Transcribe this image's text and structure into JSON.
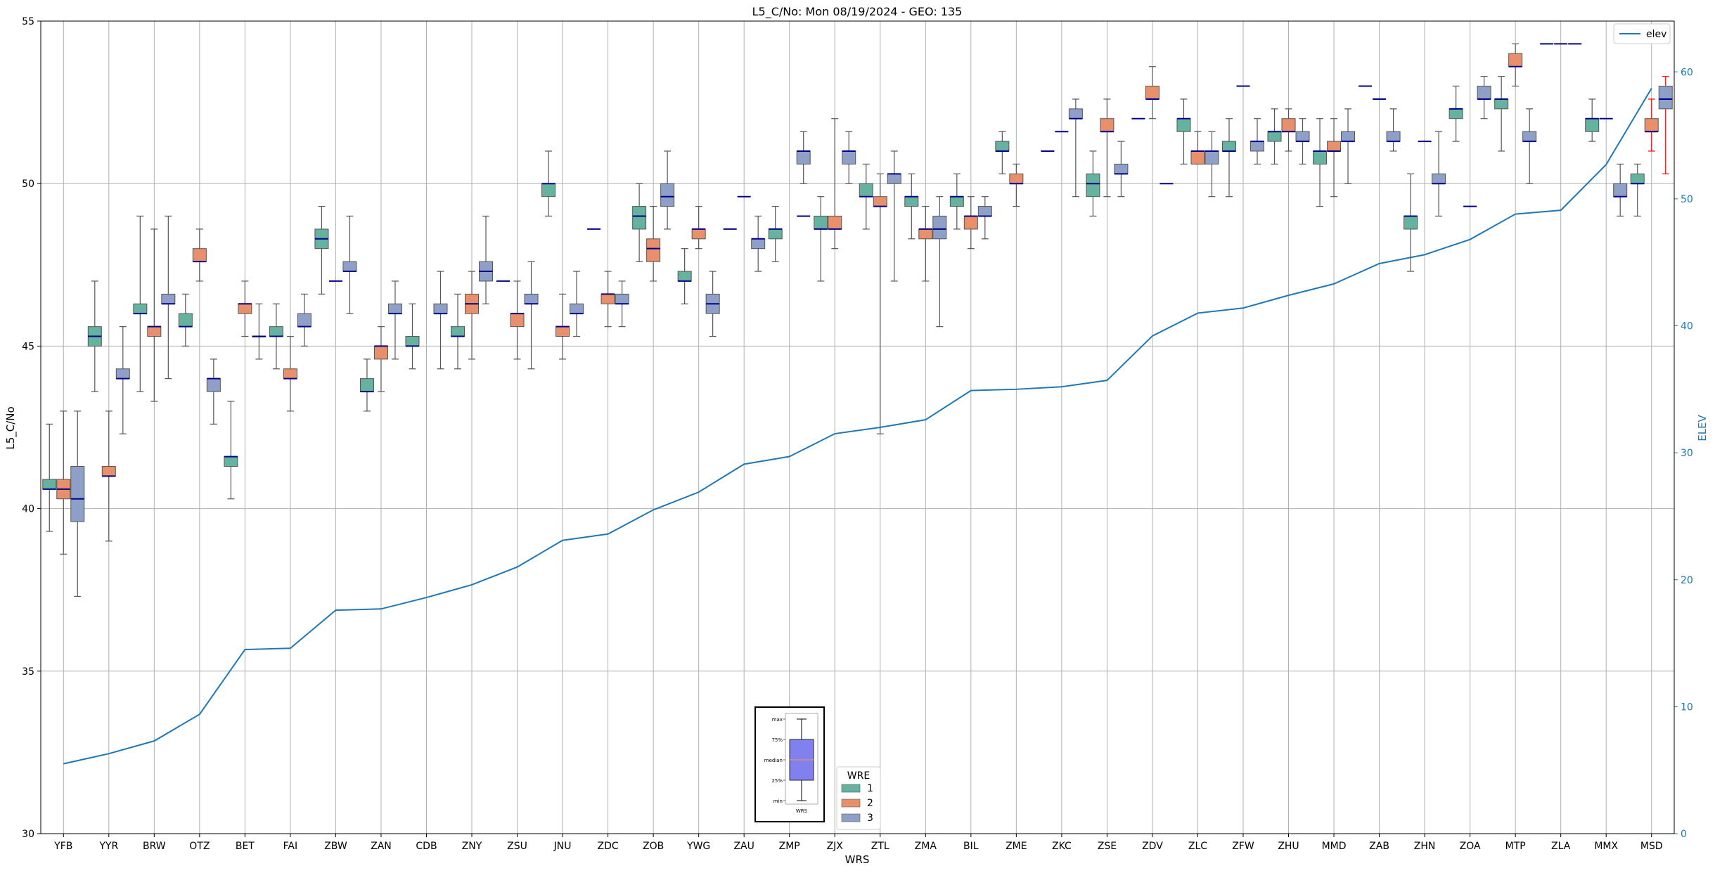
{
  "chart_data": {
    "type": "box",
    "title": "L5_C/No: Mon 08/19/2024 - GEO: 135",
    "xlabel": "WRS",
    "ylabel": "L5_C/No",
    "ylabel_right": "ELEV",
    "ylim": [
      30,
      55
    ],
    "ylim_right": [
      0,
      64
    ],
    "yticks": [
      30,
      35,
      40,
      45,
      50,
      55
    ],
    "yticks_right": [
      0,
      10,
      20,
      30,
      40,
      50,
      60
    ],
    "grid": true,
    "categories": [
      "YFB",
      "YYR",
      "BRW",
      "OTZ",
      "BET",
      "FAI",
      "ZBW",
      "ZAN",
      "CDB",
      "ZNY",
      "ZSU",
      "JNU",
      "ZDC",
      "ZOB",
      "YWG",
      "ZAU",
      "ZMP",
      "ZJX",
      "ZTL",
      "ZMA",
      "BIL",
      "ZME",
      "ZKC",
      "ZSE",
      "ZDV",
      "ZLC",
      "ZFW",
      "ZHU",
      "MMD",
      "ZAB",
      "ZHN",
      "ZOA",
      "MTP",
      "ZLA",
      "MMX",
      "MSD"
    ],
    "legend_elev": {
      "label": "elev",
      "placement": "upper right"
    },
    "legend_wre": {
      "title": "WRE",
      "entries": [
        "1",
        "2",
        "3"
      ],
      "placement": "lower center"
    },
    "colors": {
      "wre1": "#66b2a0",
      "wre2": "#e8906c",
      "wre3": "#8fa0c8",
      "elev_line": "#1f77b4",
      "median": "#00008b",
      "whisker": "#555555",
      "red_whisker": "#ff0000"
    },
    "inset": {
      "labels": [
        "max",
        "75%",
        "median",
        "25%",
        "min"
      ],
      "xlabel": "WRS"
    },
    "elev": [
      5.5,
      6.3,
      7.3,
      9.4,
      14.5,
      14.6,
      17.6,
      17.7,
      18.6,
      19.6,
      21.0,
      23.1,
      23.6,
      25.5,
      26.9,
      29.1,
      29.7,
      31.5,
      32.0,
      32.6,
      34.9,
      35.0,
      35.2,
      35.7,
      39.2,
      41.0,
      41.4,
      42.4,
      43.3,
      44.9,
      45.6,
      46.8,
      48.8,
      49.1,
      52.7,
      58.7
    ],
    "series": [
      {
        "name": "1",
        "boxes": [
          {
            "cat": "YFB",
            "min": 39.3,
            "q1": 40.6,
            "median": 40.6,
            "q3": 40.9,
            "max": 42.6
          },
          {
            "cat": "YYR",
            "min": 43.6,
            "q1": 45.0,
            "median": 45.3,
            "q3": 45.6,
            "max": 47.0
          },
          {
            "cat": "BRW",
            "min": 43.6,
            "q1": 46.0,
            "median": 46.0,
            "q3": 46.3,
            "max": 49.0
          },
          {
            "cat": "OTZ",
            "min": 45.0,
            "q1": 45.6,
            "median": 45.6,
            "q3": 46.0,
            "max": 46.6
          },
          {
            "cat": "BET",
            "min": 40.3,
            "q1": 41.3,
            "median": 41.6,
            "q3": 41.6,
            "max": 43.3
          },
          {
            "cat": "FAI",
            "min": 44.3,
            "q1": 45.3,
            "median": 45.3,
            "q3": 45.6,
            "max": 46.3
          },
          {
            "cat": "ZBW",
            "min": 46.6,
            "q1": 48.0,
            "median": 48.3,
            "q3": 48.6,
            "max": 49.3
          },
          {
            "cat": "ZAN",
            "min": 43.0,
            "q1": 43.6,
            "median": 43.6,
            "q3": 44.0,
            "max": 44.6
          },
          {
            "cat": "CDB",
            "min": 44.3,
            "q1": 45.0,
            "median": 45.0,
            "q3": 45.3,
            "max": 46.3
          },
          {
            "cat": "ZNY",
            "min": 44.3,
            "q1": 45.3,
            "median": 45.3,
            "q3": 45.6,
            "max": 46.6
          },
          {
            "cat": "JNU",
            "min": 49.0,
            "q1": 49.6,
            "median": 50.0,
            "q3": 50.0,
            "max": 51.0
          },
          {
            "cat": "ZOB",
            "min": 47.6,
            "q1": 48.6,
            "median": 49.0,
            "q3": 49.3,
            "max": 50.0
          },
          {
            "cat": "YWG",
            "min": 46.3,
            "q1": 47.0,
            "median": 47.0,
            "q3": 47.3,
            "max": 48.0
          },
          {
            "cat": "ZMP",
            "min": 47.6,
            "q1": 48.3,
            "median": 48.6,
            "q3": 48.6,
            "max": 49.3
          },
          {
            "cat": "ZJX",
            "min": 47.0,
            "q1": 48.6,
            "median": 48.6,
            "q3": 49.0,
            "max": 49.6
          },
          {
            "cat": "ZTL",
            "min": 48.6,
            "q1": 49.6,
            "median": 49.6,
            "q3": 50.0,
            "max": 50.6
          },
          {
            "cat": "ZMA",
            "min": 48.3,
            "q1": 49.3,
            "median": 49.6,
            "q3": 49.6,
            "max": 50.3
          },
          {
            "cat": "BIL",
            "min": 48.6,
            "q1": 49.3,
            "median": 49.6,
            "q3": 49.6,
            "max": 50.3
          },
          {
            "cat": "ZME",
            "min": 50.3,
            "q1": 51.0,
            "median": 51.0,
            "q3": 51.3,
            "max": 51.6
          },
          {
            "cat": "ZSE",
            "min": 49.0,
            "q1": 49.6,
            "median": 50.0,
            "q3": 50.3,
            "max": 51.0
          },
          {
            "cat": "ZLC",
            "min": 50.6,
            "q1": 51.6,
            "median": 52.0,
            "q3": 52.0,
            "max": 52.6
          },
          {
            "cat": "ZFW",
            "min": 49.6,
            "q1": 51.0,
            "median": 51.0,
            "q3": 51.3,
            "max": 52.0
          },
          {
            "cat": "ZHU",
            "min": 50.6,
            "q1": 51.3,
            "median": 51.6,
            "q3": 51.6,
            "max": 52.3
          },
          {
            "cat": "MMD",
            "min": 49.3,
            "q1": 50.6,
            "median": 51.0,
            "q3": 51.0,
            "max": 52.0
          },
          {
            "cat": "ZHN",
            "min": 47.3,
            "q1": 48.6,
            "median": 49.0,
            "q3": 49.0,
            "max": 50.3
          },
          {
            "cat": "ZOA",
            "min": 51.3,
            "q1": 52.0,
            "median": 52.3,
            "q3": 52.3,
            "max": 53.0
          },
          {
            "cat": "MTP",
            "min": 51.0,
            "q1": 52.3,
            "median": 52.6,
            "q3": 52.6,
            "max": 53.3
          },
          {
            "cat": "MMX",
            "min": 51.3,
            "q1": 51.6,
            "median": 52.0,
            "q3": 52.0,
            "max": 52.6
          },
          {
            "cat": "MSD",
            "min": 49.0,
            "q1": 50.0,
            "median": 50.0,
            "q3": 50.3,
            "max": 50.6
          }
        ]
      },
      {
        "name": "2",
        "boxes": [
          {
            "cat": "YFB",
            "min": 38.6,
            "q1": 40.3,
            "median": 40.6,
            "q3": 40.9,
            "max": 43.0
          },
          {
            "cat": "YYR",
            "min": 39.0,
            "q1": 41.0,
            "median": 41.0,
            "q3": 41.3,
            "max": 43.0
          },
          {
            "cat": "BRW",
            "min": 43.3,
            "q1": 45.3,
            "median": 45.6,
            "q3": 45.6,
            "max": 48.6
          },
          {
            "cat": "OTZ",
            "min": 47.0,
            "q1": 47.6,
            "median": 47.6,
            "q3": 48.0,
            "max": 48.6
          },
          {
            "cat": "BET",
            "min": 45.3,
            "q1": 46.0,
            "median": 46.3,
            "q3": 46.3,
            "max": 47.0
          },
          {
            "cat": "FAI",
            "min": 43.0,
            "q1": 44.0,
            "median": 44.0,
            "q3": 44.3,
            "max": 45.3
          },
          {
            "cat": "ZAN",
            "min": 43.6,
            "q1": 44.6,
            "median": 45.0,
            "q3": 45.0,
            "max": 45.6
          },
          {
            "cat": "ZNY",
            "min": 44.6,
            "q1": 46.0,
            "median": 46.3,
            "q3": 46.6,
            "max": 47.3
          },
          {
            "cat": "ZSU",
            "min": 44.6,
            "q1": 45.6,
            "median": 46.0,
            "q3": 46.0,
            "max": 47.0
          },
          {
            "cat": "JNU",
            "min": 44.6,
            "q1": 45.3,
            "median": 45.6,
            "q3": 45.6,
            "max": 46.6
          },
          {
            "cat": "ZDC",
            "min": 45.6,
            "q1": 46.3,
            "median": 46.6,
            "q3": 46.6,
            "max": 47.3
          },
          {
            "cat": "ZOB",
            "min": 47.0,
            "q1": 47.6,
            "median": 48.0,
            "q3": 48.3,
            "max": 49.3
          },
          {
            "cat": "YWG",
            "min": 48.0,
            "q1": 48.3,
            "median": 48.6,
            "q3": 48.6,
            "max": 49.3
          },
          {
            "cat": "ZJX",
            "min": 48.0,
            "q1": 48.6,
            "median": 48.6,
            "q3": 49.0,
            "max": 52.0
          },
          {
            "cat": "ZTL",
            "min": 42.3,
            "q1": 49.3,
            "median": 49.3,
            "q3": 49.6,
            "max": 50.3
          },
          {
            "cat": "ZMA",
            "min": 47.0,
            "q1": 48.3,
            "median": 48.6,
            "q3": 48.6,
            "max": 49.3
          },
          {
            "cat": "BIL",
            "min": 48.0,
            "q1": 48.6,
            "median": 49.0,
            "q3": 49.0,
            "max": 49.6
          },
          {
            "cat": "ZME",
            "min": 49.3,
            "q1": 50.0,
            "median": 50.0,
            "q3": 50.3,
            "max": 50.6
          },
          {
            "cat": "ZSE",
            "min": 49.6,
            "q1": 51.6,
            "median": 51.6,
            "q3": 52.0,
            "max": 52.6
          },
          {
            "cat": "ZDV",
            "min": 52.0,
            "q1": 52.6,
            "median": 52.6,
            "q3": 53.0,
            "max": 53.6
          },
          {
            "cat": "ZLC",
            "min": 50.6,
            "q1": 50.6,
            "median": 51.0,
            "q3": 51.0,
            "max": 51.6
          },
          {
            "cat": "ZHU",
            "min": 51.0,
            "q1": 51.6,
            "median": 51.6,
            "q3": 52.0,
            "max": 52.3
          },
          {
            "cat": "MMD",
            "min": 49.6,
            "q1": 51.0,
            "median": 51.0,
            "q3": 51.3,
            "max": 52.0
          },
          {
            "cat": "MTP",
            "min": 53.0,
            "q1": 53.6,
            "median": 53.6,
            "q3": 54.0,
            "max": 54.3
          },
          {
            "cat": "MSD",
            "min": 51.0,
            "q1": 51.6,
            "median": 51.6,
            "q3": 52.0,
            "max": 52.6,
            "whisker": "red"
          }
        ]
      },
      {
        "name": "3",
        "boxes": [
          {
            "cat": "YFB",
            "min": 37.3,
            "q1": 39.6,
            "median": 40.3,
            "q3": 41.3,
            "max": 43.0
          },
          {
            "cat": "YYR",
            "min": 42.3,
            "q1": 44.0,
            "median": 44.0,
            "q3": 44.3,
            "max": 45.6
          },
          {
            "cat": "BRW",
            "min": 44.0,
            "q1": 46.3,
            "median": 46.3,
            "q3": 46.6,
            "max": 49.0
          },
          {
            "cat": "OTZ",
            "min": 42.6,
            "q1": 43.6,
            "median": 44.0,
            "q3": 44.0,
            "max": 44.6
          },
          {
            "cat": "BET",
            "min": 44.6,
            "q1": 45.3,
            "median": 45.3,
            "q3": 45.3,
            "max": 46.3
          },
          {
            "cat": "FAI",
            "min": 45.0,
            "q1": 45.6,
            "median": 45.6,
            "q3": 46.0,
            "max": 46.6
          },
          {
            "cat": "ZBW",
            "min": 46.0,
            "q1": 47.3,
            "median": 47.3,
            "q3": 47.6,
            "max": 49.0
          },
          {
            "cat": "ZAN",
            "min": 44.6,
            "q1": 46.0,
            "median": 46.0,
            "q3": 46.3,
            "max": 47.0
          },
          {
            "cat": "CDB",
            "min": 44.3,
            "q1": 46.0,
            "median": 46.0,
            "q3": 46.3,
            "max": 47.3
          },
          {
            "cat": "ZNY",
            "min": 46.3,
            "q1": 47.0,
            "median": 47.3,
            "q3": 47.6,
            "max": 49.0
          },
          {
            "cat": "ZSU",
            "min": 44.3,
            "q1": 46.3,
            "median": 46.3,
            "q3": 46.6,
            "max": 47.6
          },
          {
            "cat": "JNU",
            "min": 45.3,
            "q1": 46.0,
            "median": 46.0,
            "q3": 46.3,
            "max": 47.3
          },
          {
            "cat": "ZDC",
            "min": 45.6,
            "q1": 46.3,
            "median": 46.3,
            "q3": 46.6,
            "max": 47.0
          },
          {
            "cat": "ZOB",
            "min": 48.6,
            "q1": 49.3,
            "median": 49.6,
            "q3": 50.0,
            "max": 51.0
          },
          {
            "cat": "YWG",
            "min": 45.3,
            "q1": 46.0,
            "median": 46.3,
            "q3": 46.6,
            "max": 47.3
          },
          {
            "cat": "ZAU",
            "min": 47.3,
            "q1": 48.0,
            "median": 48.3,
            "q3": 48.3,
            "max": 49.0
          },
          {
            "cat": "ZMP",
            "min": 50.0,
            "q1": 50.6,
            "median": 51.0,
            "q3": 51.0,
            "max": 51.6
          },
          {
            "cat": "ZJX",
            "min": 50.0,
            "q1": 50.6,
            "median": 51.0,
            "q3": 51.0,
            "max": 51.6
          },
          {
            "cat": "ZTL",
            "min": 47.0,
            "q1": 50.0,
            "median": 50.3,
            "q3": 50.3,
            "max": 51.0
          },
          {
            "cat": "ZMA",
            "min": 45.6,
            "q1": 48.3,
            "median": 48.6,
            "q3": 49.0,
            "max": 49.6
          },
          {
            "cat": "BIL",
            "min": 48.3,
            "q1": 49.0,
            "median": 49.0,
            "q3": 49.3,
            "max": 49.6
          },
          {
            "cat": "ZKC",
            "min": 49.6,
            "q1": 52.0,
            "median": 52.0,
            "q3": 52.3,
            "max": 52.6
          },
          {
            "cat": "ZSE",
            "min": 49.6,
            "q1": 50.3,
            "median": 50.3,
            "q3": 50.6,
            "max": 51.3
          },
          {
            "cat": "ZLC",
            "min": 49.6,
            "q1": 50.6,
            "median": 51.0,
            "q3": 51.0,
            "max": 51.6
          },
          {
            "cat": "ZFW",
            "min": 50.6,
            "q1": 51.0,
            "median": 51.3,
            "q3": 51.3,
            "max": 52.0
          },
          {
            "cat": "ZHU",
            "min": 50.6,
            "q1": 51.3,
            "median": 51.3,
            "q3": 51.6,
            "max": 52.0
          },
          {
            "cat": "MMD",
            "min": 50.0,
            "q1": 51.3,
            "median": 51.3,
            "q3": 51.6,
            "max": 52.3
          },
          {
            "cat": "ZAB",
            "min": 51.0,
            "q1": 51.3,
            "median": 51.3,
            "q3": 51.6,
            "max": 52.3
          },
          {
            "cat": "ZHN",
            "min": 49.0,
            "q1": 50.0,
            "median": 50.0,
            "q3": 50.3,
            "max": 51.6
          },
          {
            "cat": "ZOA",
            "min": 52.0,
            "q1": 52.6,
            "median": 52.6,
            "q3": 53.0,
            "max": 53.3
          },
          {
            "cat": "MTP",
            "min": 50.0,
            "q1": 51.3,
            "median": 51.3,
            "q3": 51.6,
            "max": 52.3
          },
          {
            "cat": "MMX",
            "min": 49.0,
            "q1": 49.6,
            "median": 49.6,
            "q3": 50.0,
            "max": 50.6
          },
          {
            "cat": "MSD",
            "min": 50.3,
            "q1": 52.3,
            "median": 52.6,
            "q3": 53.0,
            "max": 53.3,
            "whisker": "red"
          }
        ]
      }
    ],
    "single_values": [
      {
        "cat": "BET",
        "series": "3",
        "value": 45.3
      },
      {
        "cat": "ZBW",
        "series": "2",
        "value": 47.0
      },
      {
        "cat": "ZSU",
        "series": "1",
        "value": 47.0
      },
      {
        "cat": "ZDC",
        "series": "1",
        "value": 48.6
      },
      {
        "cat": "ZAU",
        "series": "1",
        "value": 48.6
      },
      {
        "cat": "ZAU",
        "series": "2",
        "value": 49.6
      },
      {
        "cat": "ZMP",
        "series": "3",
        "value": 49.0
      },
      {
        "cat": "ZKC",
        "series": "1",
        "value": 51.0
      },
      {
        "cat": "ZKC",
        "series": "2",
        "value": 51.6
      },
      {
        "cat": "ZDV",
        "series": "3",
        "value": 50.0
      },
      {
        "cat": "ZDV",
        "series": "1",
        "value": 52.0
      },
      {
        "cat": "ZFW",
        "series": "2",
        "value": 53.0
      },
      {
        "cat": "ZAB",
        "series": "1",
        "value": 53.0
      },
      {
        "cat": "ZAB",
        "series": "2",
        "value": 52.6
      },
      {
        "cat": "ZHN",
        "series": "2",
        "value": 51.3
      },
      {
        "cat": "ZOA",
        "series": "2",
        "value": 49.3
      },
      {
        "cat": "ZLA",
        "series": "1",
        "value": 54.3
      },
      {
        "cat": "ZLA",
        "series": "2",
        "value": 54.3
      },
      {
        "cat": "ZLA",
        "series": "3",
        "value": 54.3
      },
      {
        "cat": "MMX",
        "series": "2",
        "value": 52.0
      }
    ]
  }
}
